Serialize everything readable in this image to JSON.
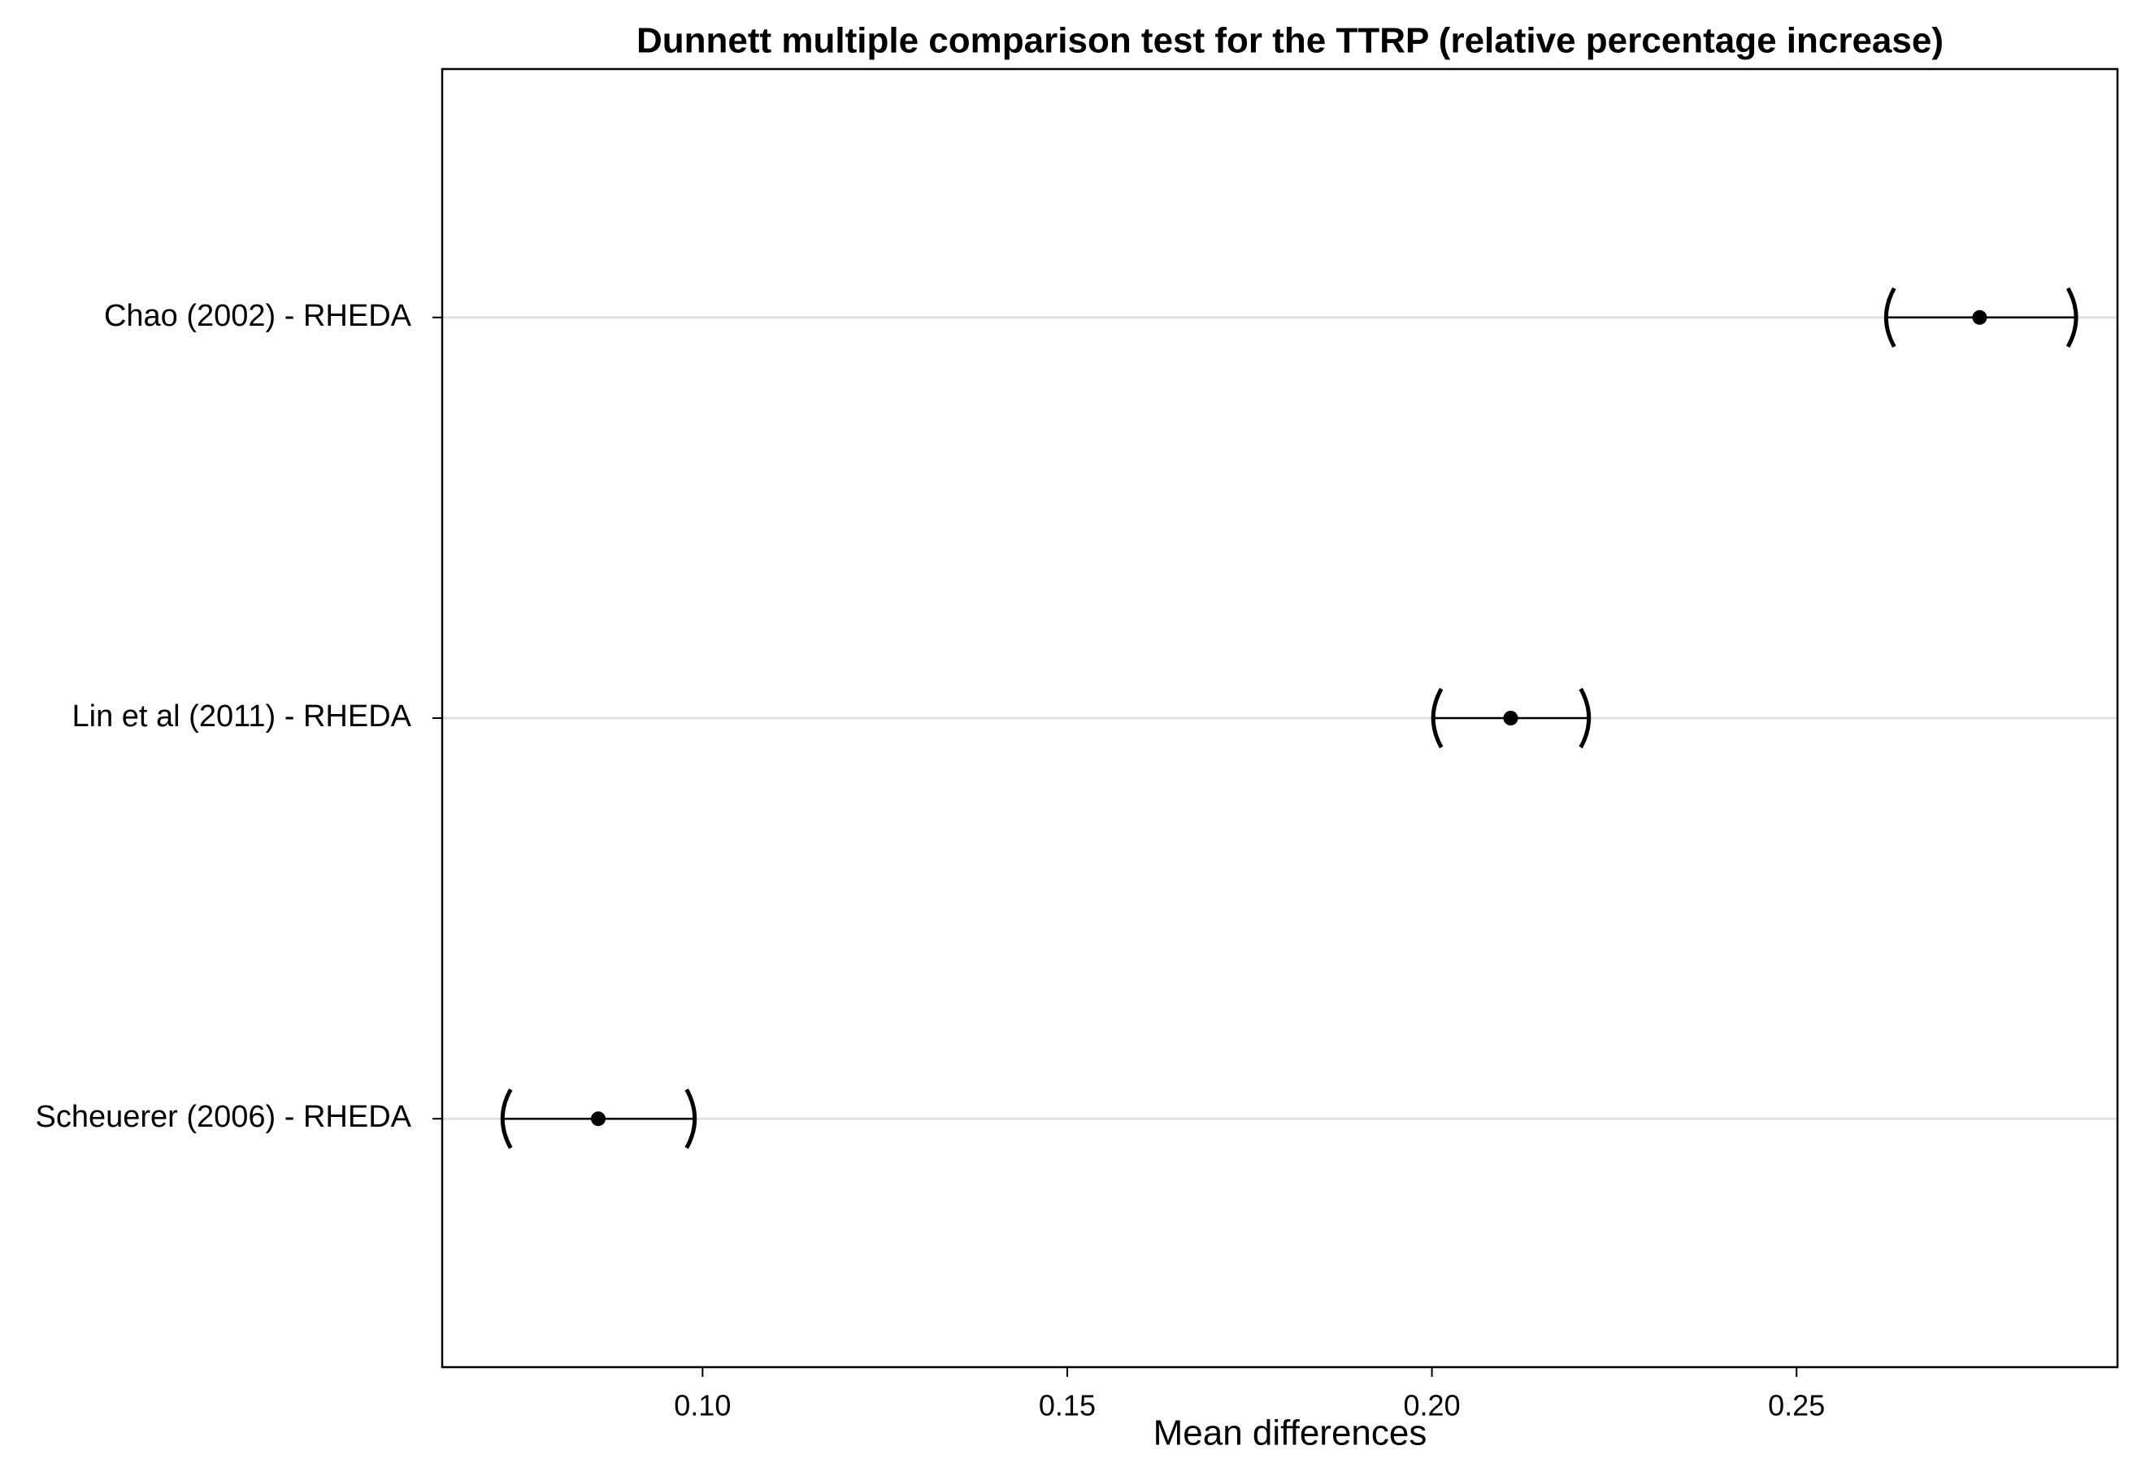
{
  "chart_data": {
    "type": "interval",
    "title": "Dunnett multiple comparison test for the TTRP (relative percentage increase)",
    "x_label": "Mean differences",
    "categories": [
      "Chao (2002) - RHEDA",
      "Lin et al (2011) - RHEDA",
      "Scheuerer (2006) - RHEDA"
    ],
    "values": [
      0.2751,
      0.2108,
      0.0857
    ],
    "lower": [
      0.2625,
      0.2004,
      0.0728
    ],
    "upper": [
      0.2881,
      0.2213,
      0.0987
    ],
    "color": "#000000",
    "xlim": [
      0.0643,
      0.294
    ],
    "xticks": [
      {
        "value": 0.1,
        "label": "0.10"
      },
      0.15,
      {
        "value": 0.2,
        "label": "0.20"
      },
      0.25
    ],
    "grid": true
  }
}
